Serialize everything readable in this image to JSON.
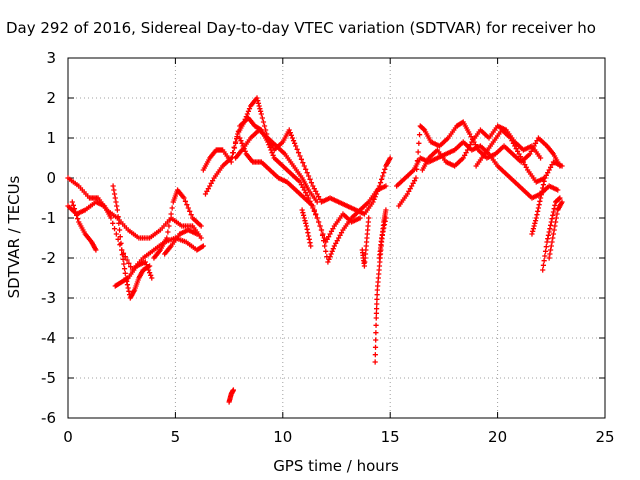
{
  "chart_data": {
    "type": "scatter",
    "title": "Day 292 of 2016, Sidereal Day-to-day VTEC variation (SDTVAR) for receiver ho",
    "xlabel": "GPS time / hours",
    "ylabel": "SDTVAR / TECUs",
    "xlim": [
      0,
      25
    ],
    "ylim": [
      -6,
      3
    ],
    "x_ticks": [
      "0",
      "5",
      "10",
      "15",
      "20",
      "25"
    ],
    "y_ticks": [
      "-6",
      "-5",
      "-4",
      "-3",
      "-2",
      "-1",
      "0",
      "1",
      "2",
      "3"
    ],
    "grid": true,
    "legend": "none",
    "marker": "plus",
    "series": [
      {
        "color": "#ff0000",
        "tracks": [
          [
            [
              0,
              0
            ],
            [
              0.5,
              -0.2
            ],
            [
              1,
              -0.5
            ],
            [
              1.4,
              -0.5
            ],
            [
              1.8,
              -0.8
            ],
            [
              2.3,
              -1.0
            ],
            [
              2.8,
              -1.3
            ],
            [
              3.3,
              -1.5
            ],
            [
              3.8,
              -1.5
            ],
            [
              4.3,
              -1.3
            ],
            [
              4.8,
              -1.0
            ],
            [
              5.3,
              -1.2
            ],
            [
              5.8,
              -1.2
            ],
            [
              6.2,
              -1.5
            ]
          ],
          [
            [
              0,
              -0.7
            ],
            [
              0.4,
              -0.9
            ],
            [
              0.8,
              -0.8
            ],
            [
              1.3,
              -0.6
            ],
            [
              1.7,
              -0.7
            ],
            [
              2.0,
              -1.0
            ],
            [
              2.5,
              -1.8
            ],
            [
              3.0,
              -2.3
            ],
            [
              3.5,
              -2.0
            ],
            [
              4.0,
              -1.8
            ],
            [
              4.5,
              -1.6
            ],
            [
              5.0,
              -1.5
            ],
            [
              5.5,
              -1.6
            ],
            [
              6.0,
              -1.8
            ],
            [
              6.3,
              -1.7
            ]
          ],
          [
            [
              0.2,
              -0.6
            ],
            [
              0.5,
              -1.1
            ],
            [
              0.8,
              -1.4
            ],
            [
              1.1,
              -1.6
            ],
            [
              1.3,
              -1.8
            ]
          ],
          [
            [
              2.1,
              -0.2
            ],
            [
              2.3,
              -0.8
            ],
            [
              2.5,
              -1.8
            ],
            [
              2.7,
              -2.5
            ],
            [
              2.9,
              -3.0
            ],
            [
              3.1,
              -2.8
            ],
            [
              3.3,
              -2.5
            ],
            [
              3.5,
              -2.3
            ],
            [
              3.8,
              -2.2
            ]
          ],
          [
            [
              2.2,
              -2.7
            ],
            [
              2.5,
              -2.6
            ],
            [
              2.8,
              -2.5
            ],
            [
              3.2,
              -2.2
            ],
            [
              3.6,
              -2.1
            ],
            [
              3.9,
              -2.5
            ]
          ],
          [
            [
              4.0,
              -2.0
            ],
            [
              4.3,
              -1.8
            ],
            [
              4.6,
              -1.5
            ],
            [
              4.9,
              -0.6
            ],
            [
              5.1,
              -0.3
            ],
            [
              5.4,
              -0.5
            ],
            [
              5.8,
              -1.0
            ],
            [
              6.2,
              -1.2
            ]
          ],
          [
            [
              4.5,
              -1.9
            ],
            [
              4.8,
              -1.7
            ],
            [
              5.2,
              -1.4
            ],
            [
              5.6,
              -1.3
            ],
            [
              6.0,
              -1.4
            ]
          ],
          [
            [
              6.3,
              0.2
            ],
            [
              6.6,
              0.5
            ],
            [
              6.9,
              0.7
            ],
            [
              7.2,
              0.7
            ],
            [
              7.6,
              0.4
            ],
            [
              7.9,
              1.1
            ],
            [
              8.2,
              1.4
            ],
            [
              8.5,
              1.8
            ],
            [
              8.8,
              2.0
            ],
            [
              9.0,
              1.6
            ],
            [
              9.3,
              1.0
            ],
            [
              9.6,
              0.7
            ],
            [
              10.0,
              0.9
            ],
            [
              10.3,
              1.2
            ],
            [
              10.6,
              0.8
            ],
            [
              11.0,
              0.3
            ],
            [
              11.4,
              -0.2
            ],
            [
              11.8,
              -0.6
            ],
            [
              12.2,
              -0.5
            ],
            [
              12.6,
              -0.6
            ],
            [
              13.0,
              -0.7
            ],
            [
              13.4,
              -0.8
            ],
            [
              13.8,
              -0.9
            ],
            [
              14.2,
              -0.6
            ],
            [
              14.5,
              -0.2
            ],
            [
              14.8,
              0.3
            ],
            [
              15.0,
              0.5
            ]
          ],
          [
            [
              6.4,
              -0.4
            ],
            [
              6.8,
              0.0
            ],
            [
              7.2,
              0.3
            ],
            [
              7.6,
              0.5
            ],
            [
              8.0,
              1.3
            ],
            [
              8.4,
              1.5
            ],
            [
              8.7,
              1.3
            ],
            [
              9.0,
              1.2
            ],
            [
              9.3,
              0.9
            ],
            [
              9.6,
              0.5
            ],
            [
              10.0,
              0.3
            ],
            [
              10.4,
              0.1
            ],
            [
              10.8,
              -0.1
            ],
            [
              11.2,
              -0.5
            ],
            [
              11.6,
              -1.0
            ],
            [
              12.0,
              -1.6
            ],
            [
              12.4,
              -1.2
            ],
            [
              12.8,
              -0.9
            ],
            [
              13.2,
              -1.1
            ],
            [
              13.6,
              -1.0
            ]
          ],
          [
            [
              7.7,
              -5.3
            ],
            [
              7.6,
              -5.4
            ],
            [
              7.5,
              -5.6
            ]
          ],
          [
            [
              7.8,
              0.5
            ],
            [
              8.1,
              0.7
            ],
            [
              8.5,
              1.0
            ],
            [
              8.9,
              1.2
            ],
            [
              9.3,
              1.0
            ],
            [
              9.7,
              0.8
            ],
            [
              10.1,
              0.6
            ],
            [
              10.5,
              0.3
            ],
            [
              10.9,
              0.0
            ],
            [
              11.2,
              -0.3
            ],
            [
              11.6,
              -0.6
            ]
          ],
          [
            [
              8.0,
              1.0
            ],
            [
              8.3,
              0.6
            ],
            [
              8.6,
              0.4
            ],
            [
              9.0,
              0.4
            ],
            [
              9.4,
              0.2
            ],
            [
              9.8,
              0.0
            ],
            [
              10.2,
              -0.1
            ],
            [
              10.6,
              -0.3
            ],
            [
              11.0,
              -0.5
            ],
            [
              11.4,
              -0.7
            ],
            [
              11.8,
              -1.3
            ],
            [
              12.1,
              -2.1
            ],
            [
              12.4,
              -1.7
            ],
            [
              12.8,
              -1.3
            ],
            [
              13.2,
              -1.0
            ],
            [
              13.6,
              -0.8
            ],
            [
              14.0,
              -0.6
            ],
            [
              14.4,
              -0.3
            ],
            [
              14.8,
              -0.2
            ]
          ],
          [
            [
              10.9,
              -0.8
            ],
            [
              11.1,
              -1.2
            ],
            [
              11.3,
              -1.7
            ]
          ],
          [
            [
              13.7,
              -1.8
            ],
            [
              13.8,
              -2.2
            ],
            [
              13.9,
              -1.6
            ],
            [
              14.0,
              -1.0
            ]
          ],
          [
            [
              14.3,
              -4.6
            ],
            [
              14.35,
              -3.5
            ],
            [
              14.4,
              -2.8
            ],
            [
              14.5,
              -2.2
            ],
            [
              14.6,
              -1.6
            ],
            [
              14.7,
              -1.1
            ],
            [
              14.8,
              -0.8
            ]
          ],
          [
            [
              14.5,
              -2.0
            ],
            [
              14.6,
              -1.5
            ],
            [
              14.8,
              -1.0
            ]
          ],
          [
            [
              15.3,
              -0.2
            ],
            [
              15.7,
              0.0
            ],
            [
              16.1,
              0.2
            ],
            [
              16.4,
              0.5
            ],
            [
              16.8,
              0.4
            ],
            [
              17.2,
              0.5
            ],
            [
              17.6,
              0.6
            ],
            [
              18.0,
              0.7
            ],
            [
              18.4,
              0.9
            ],
            [
              18.8,
              0.7
            ],
            [
              19.2,
              0.8
            ],
            [
              19.6,
              0.6
            ],
            [
              20.0,
              0.3
            ],
            [
              20.4,
              0.1
            ],
            [
              20.8,
              -0.1
            ],
            [
              21.2,
              -0.3
            ],
            [
              21.6,
              -0.5
            ],
            [
              22.0,
              -0.4
            ],
            [
              22.4,
              -0.2
            ],
            [
              22.8,
              -0.3
            ]
          ],
          [
            [
              15.4,
              -0.7
            ],
            [
              15.8,
              -0.4
            ],
            [
              16.2,
              0.0
            ],
            [
              16.4,
              1.3
            ],
            [
              16.6,
              1.2
            ],
            [
              16.9,
              0.9
            ],
            [
              17.3,
              0.8
            ],
            [
              17.7,
              1.0
            ],
            [
              18.1,
              1.3
            ],
            [
              18.4,
              1.4
            ],
            [
              18.7,
              1.1
            ],
            [
              19.1,
              0.7
            ],
            [
              19.5,
              0.5
            ],
            [
              19.9,
              0.6
            ],
            [
              20.3,
              0.8
            ],
            [
              20.7,
              0.6
            ],
            [
              21.1,
              0.4
            ],
            [
              21.5,
              0.6
            ],
            [
              21.9,
              1.0
            ],
            [
              22.3,
              0.8
            ],
            [
              22.6,
              0.6
            ],
            [
              22.9,
              0.3
            ]
          ],
          [
            [
              16.5,
              0.2
            ],
            [
              16.8,
              0.5
            ],
            [
              17.2,
              0.7
            ],
            [
              17.6,
              0.4
            ],
            [
              18.0,
              0.3
            ],
            [
              18.4,
              0.5
            ],
            [
              18.8,
              0.9
            ],
            [
              19.2,
              1.2
            ],
            [
              19.6,
              1.0
            ],
            [
              20.0,
              1.3
            ],
            [
              20.4,
              1.2
            ],
            [
              20.8,
              0.9
            ],
            [
              21.2,
              0.7
            ],
            [
              21.6,
              0.8
            ],
            [
              22.0,
              0.5
            ]
          ],
          [
            [
              19.0,
              0.3
            ],
            [
              19.4,
              0.6
            ],
            [
              19.8,
              0.9
            ],
            [
              20.2,
              1.2
            ],
            [
              20.6,
              1.0
            ],
            [
              21.0,
              0.6
            ],
            [
              21.4,
              0.2
            ],
            [
              21.8,
              -0.1
            ],
            [
              22.2,
              0.0
            ],
            [
              22.6,
              0.4
            ],
            [
              23.0,
              0.3
            ]
          ],
          [
            [
              21.6,
              -1.4
            ],
            [
              21.8,
              -1.0
            ],
            [
              22.0,
              -0.5
            ],
            [
              22.2,
              0.0
            ]
          ],
          [
            [
              22.1,
              -2.3
            ],
            [
              22.3,
              -1.6
            ],
            [
              22.5,
              -1.1
            ],
            [
              22.7,
              -0.6
            ],
            [
              22.9,
              -0.5
            ]
          ],
          [
            [
              22.4,
              -2.0
            ],
            [
              22.6,
              -1.4
            ],
            [
              22.8,
              -0.8
            ],
            [
              23.0,
              -0.6
            ]
          ]
        ]
      }
    ]
  }
}
